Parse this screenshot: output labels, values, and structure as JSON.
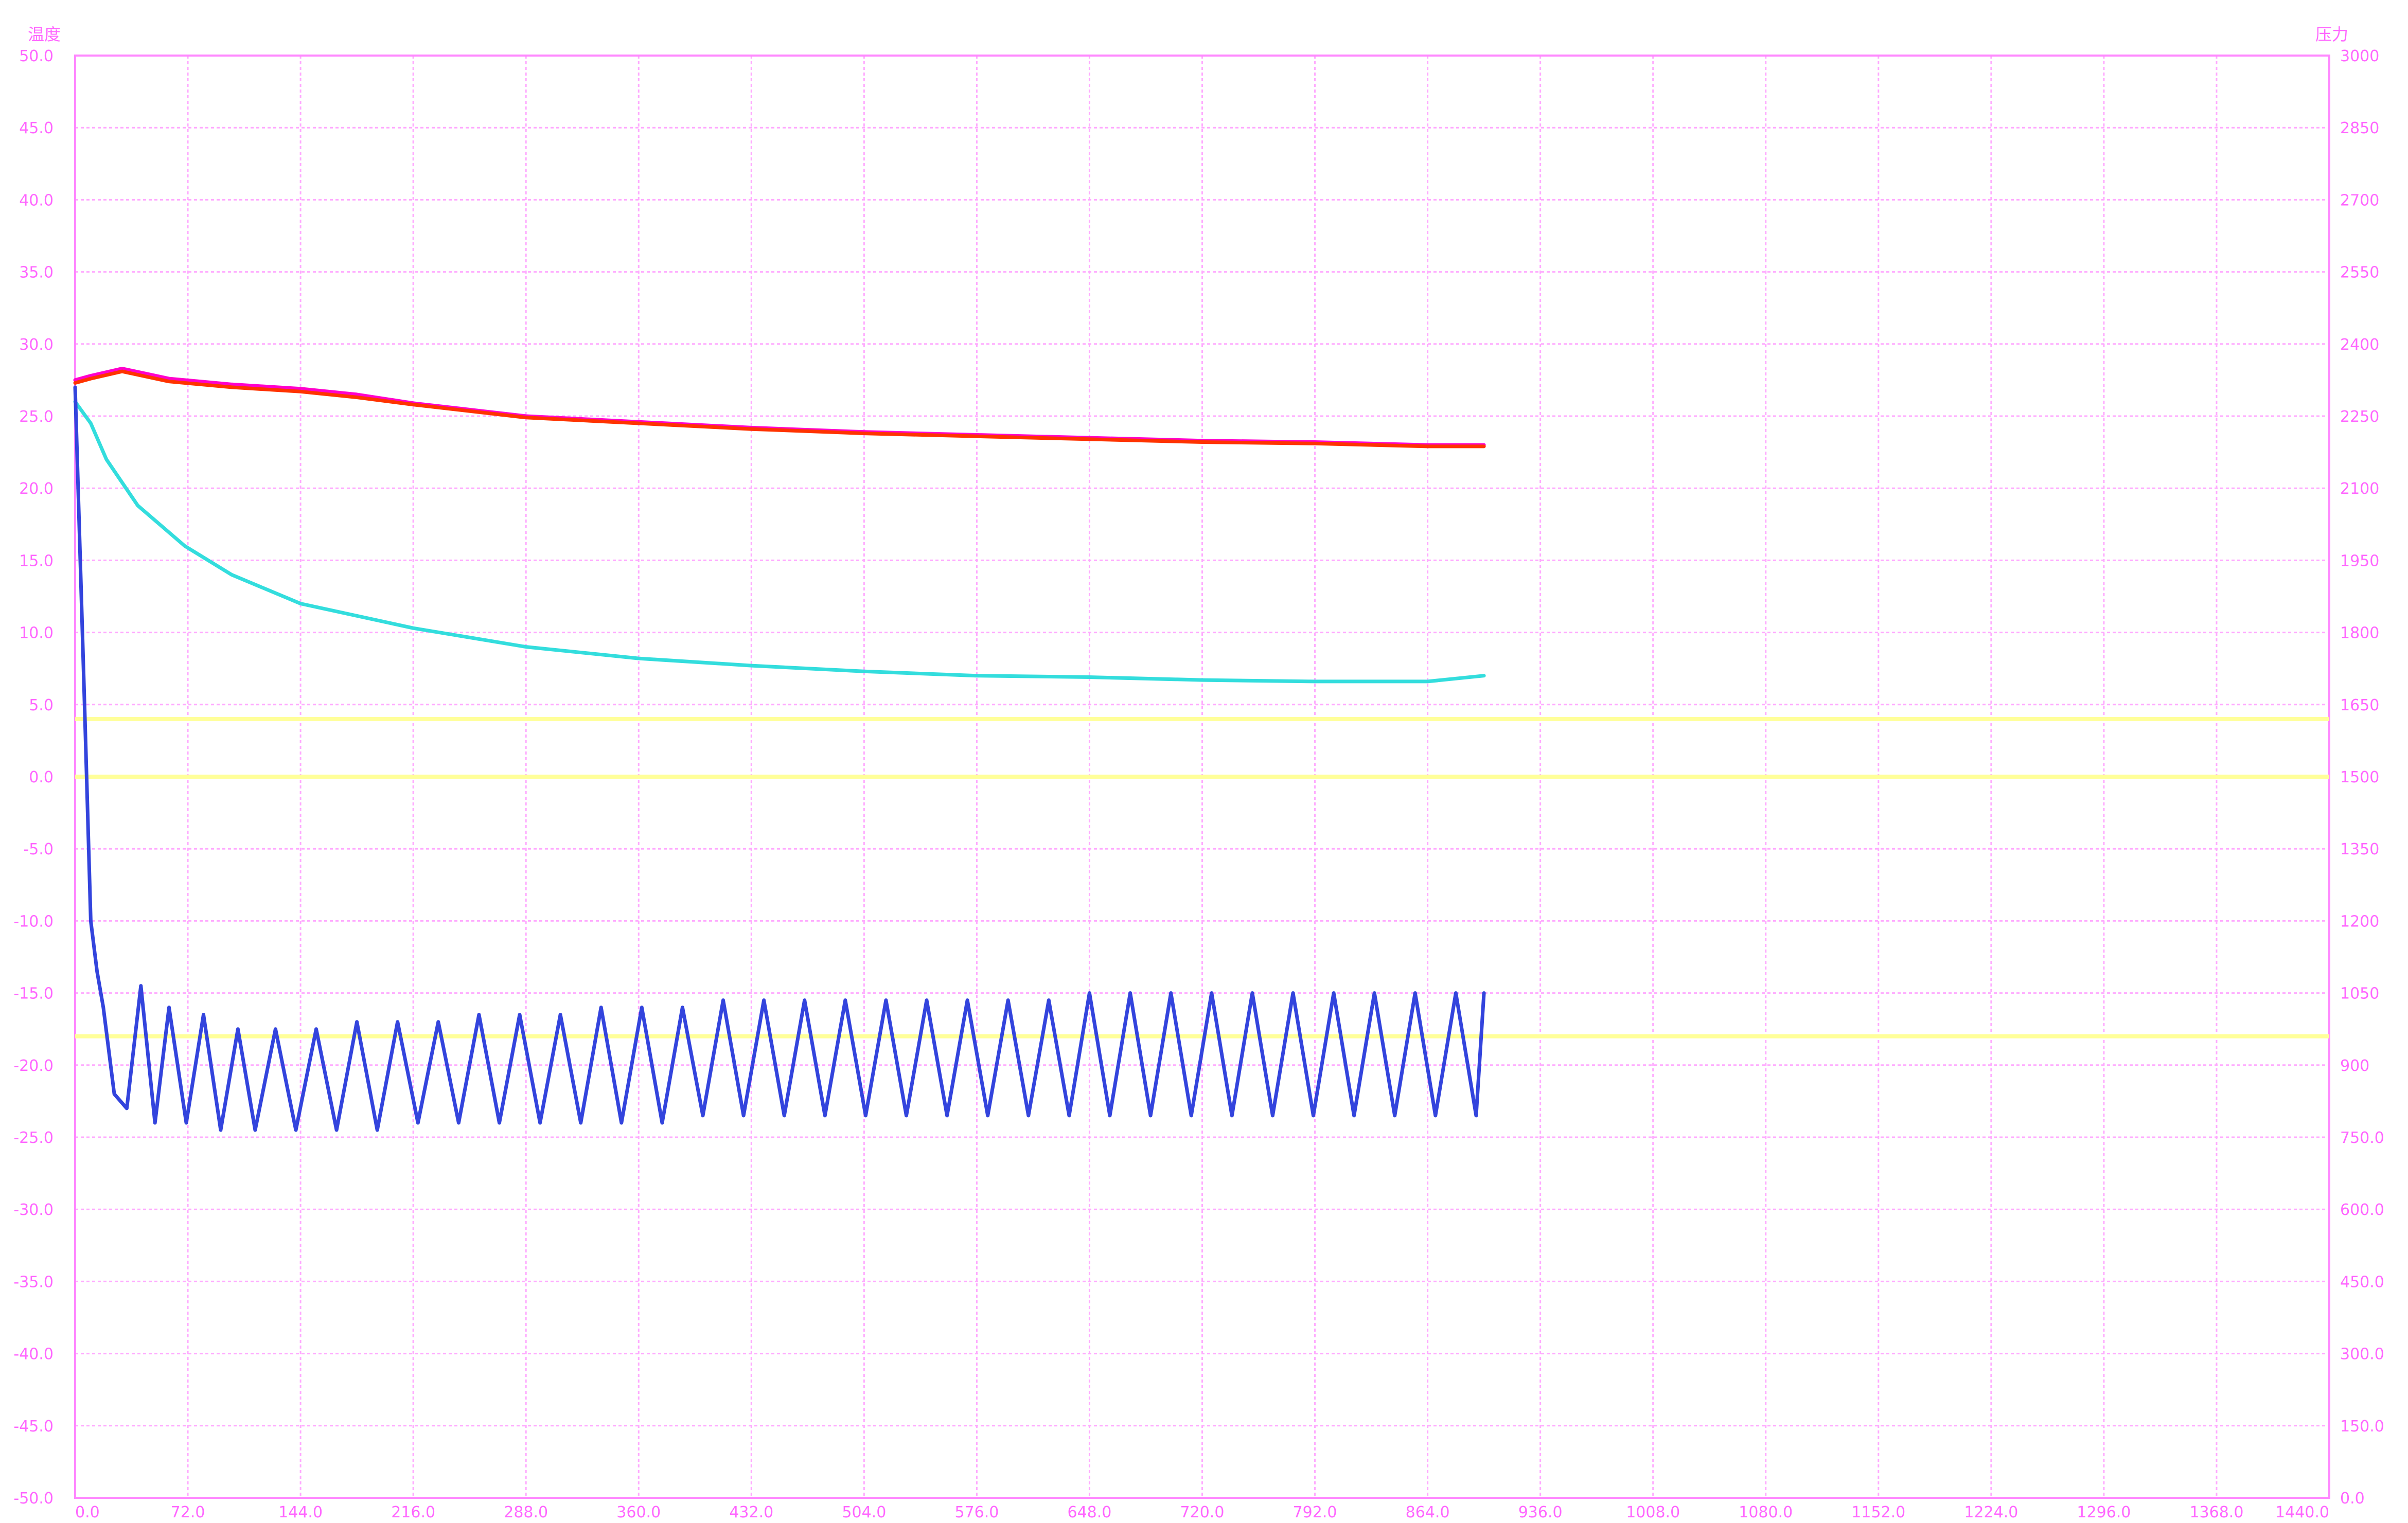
{
  "chart_data": {
    "type": "line",
    "title": "",
    "left_axis": {
      "label": "温度",
      "range": [
        -50,
        50
      ],
      "ticks": [
        50,
        45,
        40,
        35,
        30,
        25,
        20,
        15,
        10,
        5,
        0,
        -5,
        -10,
        -15,
        -20,
        -25,
        -30,
        -35,
        -40,
        -45,
        -50
      ],
      "tick_labels": [
        "50.0",
        "45.0",
        "40.0",
        "35.0",
        "30.0",
        "25.0",
        "20.0",
        "15.0",
        "10.0",
        "5.0",
        "0.0",
        "-5.0",
        "-10.0",
        "-15.0",
        "-20.0",
        "-25.0",
        "-30.0",
        "-35.0",
        "-40.0",
        "-45.0",
        "-50.0"
      ]
    },
    "right_axis": {
      "label": "压力",
      "range": [
        0,
        3000
      ],
      "ticks": [
        3000,
        2850,
        2700,
        2550,
        2400,
        2250,
        2100,
        1950,
        1800,
        1650,
        1500,
        1350,
        1200,
        1050,
        900,
        750,
        600,
        450,
        300,
        150,
        0
      ],
      "tick_labels": [
        "3000",
        "2850",
        "2700",
        "2550",
        "2400",
        "2250",
        "2100",
        "1950",
        "1800",
        "1650",
        "1500",
        "1350",
        "1200",
        "1050",
        "900",
        "750.0",
        "600.0",
        "450.0",
        "300.0",
        "150.0",
        "0.0"
      ]
    },
    "x_axis": {
      "label": "",
      "range": [
        0,
        1440
      ],
      "ticks": [
        0,
        72,
        144,
        216,
        288,
        360,
        432,
        504,
        576,
        648,
        720,
        792,
        864,
        936,
        1008,
        1080,
        1152,
        1224,
        1296,
        1368,
        1440
      ],
      "tick_labels": [
        "0.0",
        "72.0",
        "144.0",
        "216.0",
        "288.0",
        "360.0",
        "432.0",
        "504.0",
        "576.0",
        "648.0",
        "720.0",
        "792.0",
        "864.0",
        "936.0",
        "1008.0",
        "1080.0",
        "1152.0",
        "1224.0",
        "1296.0",
        "1368.0",
        "1440.0"
      ]
    },
    "grid": true,
    "legend": "none",
    "reference_lines": [
      {
        "y": 4.0,
        "color": "#ffff99"
      },
      {
        "y": 0.0,
        "color": "#ffff99"
      },
      {
        "y": -18.0,
        "color": "#ffff99"
      }
    ],
    "series": [
      {
        "color": "#ff00cc",
        "x": [
          0,
          10,
          30,
          60,
          100,
          144,
          180,
          216,
          288,
          360,
          432,
          504,
          576,
          648,
          720,
          792,
          864,
          900
        ],
        "y": [
          27.5,
          27.8,
          28.3,
          27.6,
          27.2,
          26.9,
          26.5,
          25.9,
          25.0,
          24.6,
          24.2,
          23.9,
          23.7,
          23.5,
          23.3,
          23.2,
          23.0,
          23.0
        ]
      },
      {
        "color": "#ff3300",
        "x": [
          0,
          10,
          30,
          60,
          100,
          144,
          180,
          216,
          288,
          360,
          432,
          504,
          576,
          648,
          720,
          792,
          864,
          900
        ],
        "y": [
          27.3,
          27.6,
          28.1,
          27.4,
          27.0,
          26.7,
          26.3,
          25.8,
          24.9,
          24.5,
          24.1,
          23.8,
          23.6,
          23.4,
          23.2,
          23.1,
          22.9,
          22.9
        ]
      },
      {
        "color": "#33dddd",
        "x": [
          0,
          10,
          20,
          40,
          70,
          100,
          144,
          216,
          288,
          360,
          432,
          504,
          576,
          648,
          720,
          792,
          864,
          900
        ],
        "y": [
          26.0,
          24.5,
          22.0,
          18.8,
          16.0,
          14.0,
          12.0,
          10.3,
          9.0,
          8.2,
          7.7,
          7.3,
          7.0,
          6.9,
          6.7,
          6.6,
          6.6,
          7.0
        ]
      },
      {
        "color": "#3344dd",
        "x": [
          0,
          6,
          10,
          14,
          18,
          25,
          33,
          42,
          51,
          60,
          71,
          82,
          93,
          104,
          115,
          128,
          141,
          154,
          167,
          180,
          193,
          206,
          219,
          232,
          245,
          258,
          271,
          284,
          297,
          310,
          323,
          336,
          349,
          362,
          375,
          388,
          401,
          414,
          427,
          440,
          453,
          466,
          479,
          492,
          505,
          518,
          531,
          544,
          557,
          570,
          583,
          596,
          609,
          622,
          635,
          648,
          661,
          674,
          687,
          700,
          713,
          726,
          739,
          752,
          765,
          778,
          791,
          804,
          817,
          830,
          843,
          856,
          869,
          882,
          895,
          900
        ],
        "y": [
          27.0,
          5.0,
          -10.0,
          -13.5,
          -16.0,
          -22.0,
          -23.0,
          -14.5,
          -24.0,
          -16.0,
          -24.0,
          -16.5,
          -24.5,
          -17.5,
          -24.5,
          -17.5,
          -24.5,
          -17.5,
          -24.5,
          -17.0,
          -24.5,
          -17.0,
          -24.0,
          -17.0,
          -24.0,
          -16.5,
          -24.0,
          -16.5,
          -24.0,
          -16.5,
          -24.0,
          -16.0,
          -24.0,
          -16.0,
          -24.0,
          -16.0,
          -23.5,
          -15.5,
          -23.5,
          -15.5,
          -23.5,
          -15.5,
          -23.5,
          -15.5,
          -23.5,
          -15.5,
          -23.5,
          -15.5,
          -23.5,
          -15.5,
          -23.5,
          -15.5,
          -23.5,
          -15.5,
          -23.5,
          -15.0,
          -23.5,
          -15.0,
          -23.5,
          -15.0,
          -23.5,
          -15.0,
          -23.5,
          -15.0,
          -23.5,
          -15.0,
          -23.5,
          -15.0,
          -23.5,
          -15.0,
          -23.5,
          -15.0,
          -23.5,
          -15.0,
          -23.5,
          -15.0
        ]
      }
    ]
  },
  "colors": {
    "grid": "#ffaaff",
    "frame": "#ff88ff",
    "tick_text": "#ff66ff",
    "reference": "#ffff99"
  }
}
